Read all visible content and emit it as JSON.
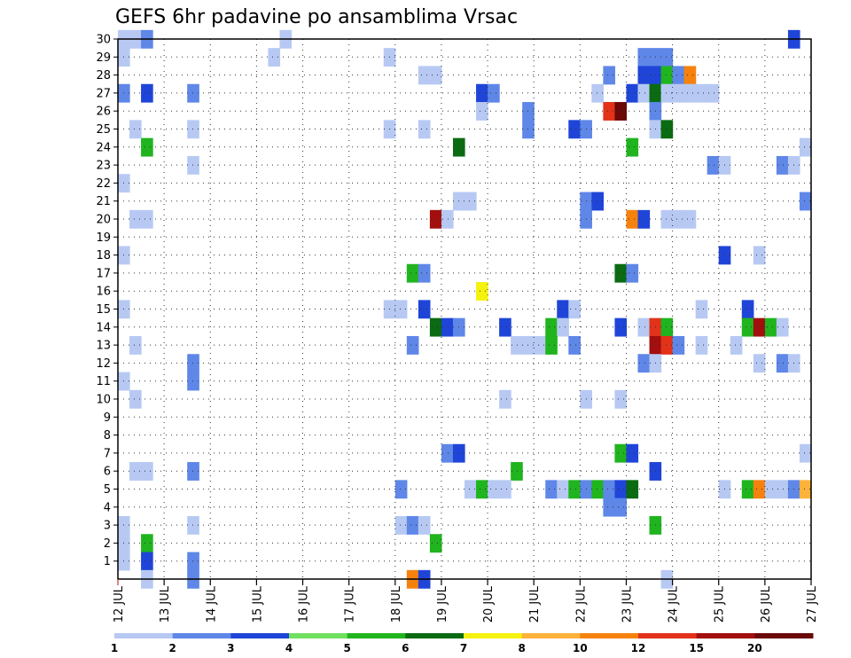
{
  "chart_data": {
    "type": "heatmap",
    "title": "GEFS 6hr padavine po ansamblima Vrsac",
    "xlabel": "",
    "ylabel": "",
    "x_ticks": [
      "12 JUL",
      "13 JUL",
      "14 JUL",
      "15 JUL",
      "16 JUL",
      "17 JUL",
      "18 JUL",
      "19 JUL",
      "20 JUL",
      "21 JUL",
      "22 JUL",
      "23 JUL",
      "24 JUL",
      "25 JUL",
      "26 JUL",
      "27 JUL"
    ],
    "x_range": [
      0,
      60
    ],
    "x_unit": "6-hour steps from 12 JUL 00Z",
    "y_ticks": [
      1,
      2,
      3,
      4,
      5,
      6,
      7,
      8,
      9,
      10,
      11,
      12,
      13,
      14,
      15,
      16,
      17,
      18,
      19,
      20,
      21,
      22,
      23,
      24,
      25,
      26,
      27,
      28,
      29,
      30
    ],
    "y_range": [
      0,
      30
    ],
    "grid": true,
    "colorbar": {
      "labels": [
        "1",
        "2",
        "3",
        "4",
        "5",
        "6",
        "7",
        "8",
        "10",
        "12",
        "15",
        "20"
      ],
      "colors": [
        "#b7c9f3",
        "#5f87e8",
        "#1f45d8",
        "#6fe05f",
        "#20b41f",
        "#0a6b12",
        "#f5f20e",
        "#ffb23a",
        "#f6820e",
        "#e3321a",
        "#a30e0e",
        "#6b0808"
      ]
    },
    "cells": [
      [
        1,
        30,
        1
      ],
      [
        2,
        30,
        1
      ],
      [
        3,
        30,
        2
      ],
      [
        15,
        30,
        1
      ],
      [
        59,
        30,
        3
      ],
      [
        1,
        29,
        1
      ],
      [
        14,
        29,
        1
      ],
      [
        24,
        29,
        1
      ],
      [
        46,
        29,
        2
      ],
      [
        47,
        29,
        2
      ],
      [
        48,
        29,
        2
      ],
      [
        27,
        28,
        1
      ],
      [
        28,
        28,
        1
      ],
      [
        43,
        28,
        2
      ],
      [
        46,
        28,
        3
      ],
      [
        47,
        28,
        3
      ],
      [
        48,
        28,
        5
      ],
      [
        49,
        28,
        2
      ],
      [
        50,
        28,
        9
      ],
      [
        1,
        27,
        2
      ],
      [
        3,
        27,
        3
      ],
      [
        7,
        27,
        2
      ],
      [
        32,
        27,
        3
      ],
      [
        33,
        27,
        2
      ],
      [
        42,
        27,
        1
      ],
      [
        45,
        27,
        3
      ],
      [
        46,
        27,
        1
      ],
      [
        47,
        27,
        6
      ],
      [
        48,
        27,
        1
      ],
      [
        49,
        27,
        1
      ],
      [
        50,
        27,
        1
      ],
      [
        51,
        27,
        1
      ],
      [
        52,
        27,
        1
      ],
      [
        32,
        26,
        1
      ],
      [
        36,
        26,
        2
      ],
      [
        43,
        26,
        10
      ],
      [
        44,
        26,
        12
      ],
      [
        47,
        26,
        2
      ],
      [
        2,
        25,
        1
      ],
      [
        7,
        25,
        1
      ],
      [
        24,
        25,
        1
      ],
      [
        27,
        25,
        1
      ],
      [
        36,
        25,
        2
      ],
      [
        40,
        25,
        3
      ],
      [
        41,
        25,
        2
      ],
      [
        47,
        25,
        1
      ],
      [
        48,
        25,
        6
      ],
      [
        3,
        24,
        5
      ],
      [
        30,
        24,
        6
      ],
      [
        45,
        24,
        5
      ],
      [
        60,
        24,
        1
      ],
      [
        7,
        23,
        1
      ],
      [
        52,
        23,
        2
      ],
      [
        53,
        23,
        1
      ],
      [
        58,
        23,
        2
      ],
      [
        59,
        23,
        1
      ],
      [
        1,
        22,
        1
      ],
      [
        30,
        21,
        1
      ],
      [
        31,
        21,
        1
      ],
      [
        41,
        21,
        2
      ],
      [
        42,
        21,
        3
      ],
      [
        60,
        21,
        2
      ],
      [
        2,
        20,
        1
      ],
      [
        3,
        20,
        1
      ],
      [
        28,
        20,
        11
      ],
      [
        29,
        20,
        1
      ],
      [
        41,
        20,
        2
      ],
      [
        45,
        20,
        9
      ],
      [
        46,
        20,
        3
      ],
      [
        48,
        20,
        1
      ],
      [
        49,
        20,
        1
      ],
      [
        50,
        20,
        1
      ],
      [
        1,
        18,
        1
      ],
      [
        53,
        18,
        3
      ],
      [
        56,
        18,
        1
      ],
      [
        26,
        17,
        5
      ],
      [
        27,
        17,
        2
      ],
      [
        44,
        17,
        6
      ],
      [
        45,
        17,
        2
      ],
      [
        32,
        16,
        7
      ],
      [
        1,
        15,
        1
      ],
      [
        24,
        15,
        1
      ],
      [
        25,
        15,
        1
      ],
      [
        27,
        15,
        3
      ],
      [
        39,
        15,
        3
      ],
      [
        40,
        15,
        1
      ],
      [
        51,
        15,
        1
      ],
      [
        55,
        15,
        3
      ],
      [
        28,
        14,
        6
      ],
      [
        29,
        14,
        3
      ],
      [
        30,
        14,
        2
      ],
      [
        34,
        14,
        3
      ],
      [
        38,
        14,
        5
      ],
      [
        39,
        14,
        1
      ],
      [
        44,
        14,
        3
      ],
      [
        46,
        14,
        1
      ],
      [
        47,
        14,
        10
      ],
      [
        48,
        14,
        5
      ],
      [
        55,
        14,
        5
      ],
      [
        56,
        14,
        11
      ],
      [
        57,
        14,
        5
      ],
      [
        58,
        14,
        1
      ],
      [
        2,
        13,
        1
      ],
      [
        26,
        13,
        2
      ],
      [
        35,
        13,
        1
      ],
      [
        36,
        13,
        1
      ],
      [
        37,
        13,
        1
      ],
      [
        38,
        13,
        5
      ],
      [
        40,
        13,
        2
      ],
      [
        47,
        13,
        11
      ],
      [
        48,
        13,
        10
      ],
      [
        49,
        13,
        2
      ],
      [
        51,
        13,
        1
      ],
      [
        54,
        13,
        1
      ],
      [
        7,
        12,
        2
      ],
      [
        46,
        12,
        2
      ],
      [
        47,
        12,
        1
      ],
      [
        56,
        12,
        1
      ],
      [
        58,
        12,
        2
      ],
      [
        59,
        12,
        1
      ],
      [
        1,
        11,
        1
      ],
      [
        7,
        11,
        2
      ],
      [
        2,
        10,
        1
      ],
      [
        34,
        10,
        1
      ],
      [
        41,
        10,
        1
      ],
      [
        44,
        10,
        1
      ],
      [
        29,
        7,
        2
      ],
      [
        30,
        7,
        3
      ],
      [
        44,
        7,
        5
      ],
      [
        45,
        7,
        3
      ],
      [
        60,
        7,
        1
      ],
      [
        2,
        6,
        1
      ],
      [
        3,
        6,
        1
      ],
      [
        7,
        6,
        2
      ],
      [
        35,
        6,
        5
      ],
      [
        47,
        6,
        3
      ],
      [
        25,
        5,
        2
      ],
      [
        31,
        5,
        1
      ],
      [
        32,
        5,
        5
      ],
      [
        33,
        5,
        1
      ],
      [
        34,
        5,
        1
      ],
      [
        38,
        5,
        2
      ],
      [
        39,
        5,
        1
      ],
      [
        40,
        5,
        5
      ],
      [
        41,
        5,
        2
      ],
      [
        42,
        5,
        5
      ],
      [
        43,
        5,
        2
      ],
      [
        44,
        5,
        3
      ],
      [
        45,
        5,
        6
      ],
      [
        53,
        5,
        1
      ],
      [
        55,
        5,
        5
      ],
      [
        56,
        5,
        9
      ],
      [
        57,
        5,
        1
      ],
      [
        58,
        5,
        1
      ],
      [
        59,
        5,
        2
      ],
      [
        60,
        5,
        8
      ],
      [
        43,
        4,
        2
      ],
      [
        44,
        4,
        2
      ],
      [
        1,
        3,
        1
      ],
      [
        7,
        3,
        1
      ],
      [
        25,
        3,
        1
      ],
      [
        26,
        3,
        2
      ],
      [
        27,
        3,
        1
      ],
      [
        47,
        3,
        5
      ],
      [
        1,
        2,
        1
      ],
      [
        3,
        2,
        5
      ],
      [
        28,
        2,
        5
      ],
      [
        1,
        1,
        1
      ],
      [
        3,
        1,
        3
      ],
      [
        7,
        1,
        2
      ],
      [
        3,
        0,
        1
      ],
      [
        7,
        0,
        2
      ],
      [
        26,
        0,
        9
      ],
      [
        27,
        0,
        3
      ],
      [
        48,
        0,
        1
      ]
    ]
  }
}
